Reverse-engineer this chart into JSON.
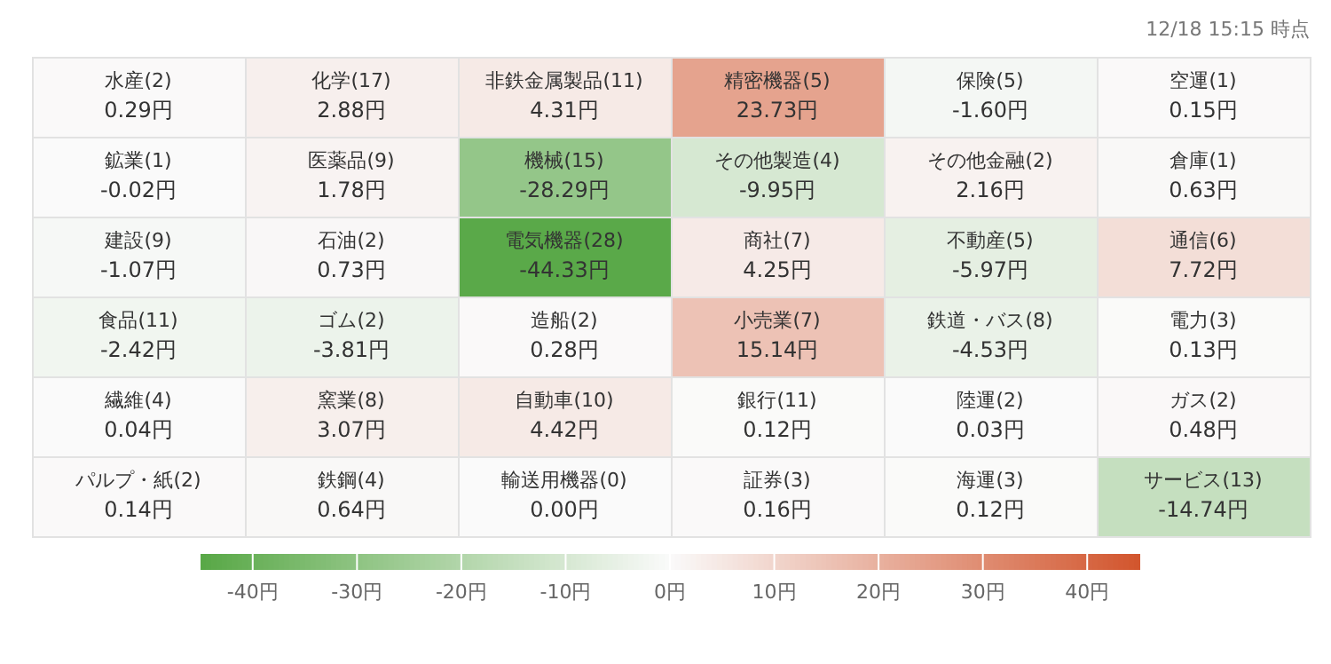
{
  "chart_data": {
    "type": "heatmap",
    "categories": [
      null,
      null,
      null,
      null,
      null,
      null
    ],
    "y_categories": [
      null,
      null,
      null,
      null,
      null,
      null
    ],
    "cells": [
      [
        0.29,
        2.88,
        4.31,
        23.73,
        -1.6,
        0.15
      ],
      [
        -0.02,
        1.78,
        -28.29,
        -9.95,
        2.16,
        0.63
      ],
      [
        -1.07,
        0.73,
        -44.33,
        4.25,
        -5.97,
        7.72
      ],
      [
        -2.42,
        -3.81,
        0.28,
        15.14,
        -4.53,
        0.13
      ],
      [
        0.04,
        3.07,
        4.42,
        0.12,
        0.03,
        0.48
      ],
      [
        0.14,
        0.64,
        0.0,
        0.16,
        0.12,
        -14.74
      ]
    ],
    "cell_labels": [
      [
        "水産(2)\n0.29円",
        "化学(17)\n2.88円",
        "非鉄金属製品(11)\n4.31円",
        "精密機器(5)\n23.73円",
        "保険(5)\n-1.60円",
        "空運(1)\n0.15円"
      ],
      [
        "鉱業(1)\n-0.02円",
        "医薬品(9)\n1.78円",
        "機械(15)\n-28.29円",
        "その他製造(4)\n-9.95円",
        "その他金融(2)\n2.16円",
        "倉庫(1)\n0.63円"
      ],
      [
        "建設(9)\n-1.07円",
        "石油(2)\n0.73円",
        "電気機器(28)\n-44.33円",
        "商社(7)\n4.25円",
        "不動産(5)\n-5.97円",
        "通信(6)\n7.72円"
      ],
      [
        "食品(11)\n-2.42円",
        "ゴム(2)\n-3.81円",
        "造船(2)\n0.28円",
        "小売業(7)\n15.14円",
        "鉄道・バス(8)\n-4.53円",
        "電力(3)\n0.13円"
      ],
      [
        "繊維(4)\n0.04円",
        "窯業(8)\n3.07円",
        "自動車(10)\n4.42円",
        "銀行(11)\n0.12円",
        "陸運(2)\n0.03円",
        "ガス(2)\n0.48円"
      ],
      [
        "パルプ・紙(2)\n0.14円",
        "鉄鋼(4)\n0.64円",
        "輸送用機器(0)\n0.00円",
        "証券(3)\n0.16円",
        "海運(3)\n0.12円",
        "サービス(13)\n-14.74円"
      ]
    ],
    "clim": [
      -45,
      45
    ],
    "cticks": [
      {
        "value": -40,
        "label": "-40円"
      },
      {
        "value": -30,
        "label": "-30円"
      },
      {
        "value": -20,
        "label": "-20円"
      },
      {
        "value": -10,
        "label": "-10円"
      },
      {
        "value": 0,
        "label": "0円"
      },
      {
        "value": 10,
        "label": "10円"
      },
      {
        "value": 20,
        "label": "20円"
      },
      {
        "value": 30,
        "label": "30円"
      },
      {
        "value": 40,
        "label": "40円"
      }
    ],
    "annotations": [
      "12/18 15:15 時点"
    ]
  }
}
